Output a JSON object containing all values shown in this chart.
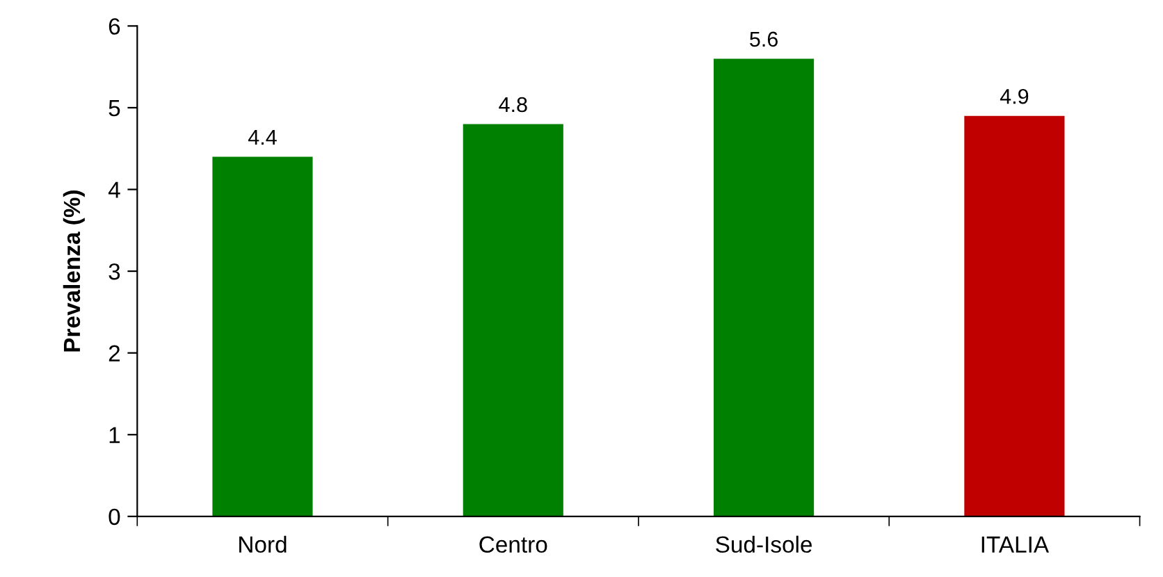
{
  "chart_data": {
    "type": "bar",
    "ylabel": "Prevalenza (%)",
    "categories": [
      "Nord",
      "Centro",
      "Sud-Isole",
      "ITALIA"
    ],
    "values": [
      4.4,
      4.8,
      5.6,
      4.9
    ],
    "colors": [
      "#008000",
      "#008000",
      "#008000",
      "#c00000"
    ],
    "ylim": [
      0,
      6
    ],
    "yticks": [
      0,
      1,
      2,
      3,
      4,
      5,
      6
    ],
    "data_labels": true,
    "grid": false,
    "legend": false
  }
}
